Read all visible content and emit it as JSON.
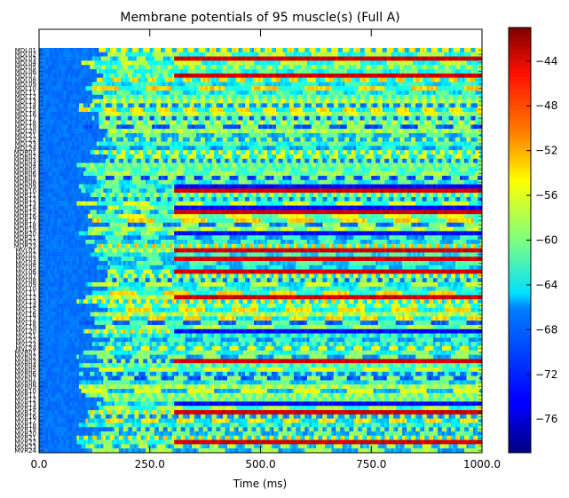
{
  "chart_data": {
    "type": "heatmap",
    "title": "Membrane potentials of 95 muscle(s) (Full A)",
    "xlabel": "Time (ms)",
    "xlim": [
      0,
      1000
    ],
    "x_ticks": [
      "0.0",
      "250.0",
      "500.0",
      "750.0",
      "1000.0"
    ],
    "x_tick_values": [
      0,
      250,
      500,
      750,
      1000
    ],
    "rows": [
      "MDL01",
      "MDL02",
      "MDL03",
      "MDL04",
      "MDL05",
      "MDL06",
      "MDL07",
      "MDL08",
      "MDL09",
      "MDL10",
      "MDL11",
      "MDL12",
      "MDL13",
      "MDL14",
      "MDL15",
      "MDL16",
      "MDL17",
      "MDL18",
      "MDL19",
      "MDL20",
      "MDL21",
      "MDL22",
      "MDL23",
      "MDL24",
      "MDR01",
      "MDR02",
      "MDR03",
      "MDR04",
      "MDR05",
      "MDR06",
      "MDR07",
      "MDR08",
      "MDR09",
      "MDR10",
      "MDR11",
      "MDR12",
      "MDR13",
      "MDR14",
      "MDR15",
      "MDR16",
      "MDR17",
      "MDR18",
      "MDR19",
      "MDR20",
      "MDR21",
      "MDR22",
      "MDR23",
      "MVL01",
      "MVL02",
      "MVL03",
      "MVL04",
      "MVL05",
      "MVL06",
      "MVL07",
      "MVL08",
      "MVL09",
      "MVL10",
      "MVL11",
      "MVL12",
      "MVL13",
      "MVL14",
      "MVL15",
      "MVL16",
      "MVL17",
      "MVL18",
      "MVL19",
      "MVL20",
      "MVL21",
      "MVL22",
      "MVL23",
      "MVL24",
      "MVR01",
      "MVR02",
      "MVR03",
      "MVR04",
      "MVR05",
      "MVR06",
      "MVR07",
      "MVR08",
      "MVR09",
      "MVR10",
      "MVR11",
      "MVR12",
      "MVR13",
      "MVR14",
      "MVR15",
      "MVR16",
      "MVR17",
      "MVR18",
      "MVR19",
      "MVR20",
      "MVR21",
      "MVR22",
      "MVR23",
      "MVR24"
    ],
    "colorbar": {
      "colormap": "jet",
      "vmin": -79,
      "vmax": -41,
      "tick_values": [
        -76,
        -72,
        -68,
        -64,
        -60,
        -56,
        -52,
        -48,
        -44
      ],
      "tick_labels": [
        "−76",
        "−72",
        "−68",
        "−64",
        "−60",
        "−56",
        "−52",
        "−48",
        "−44"
      ]
    },
    "resting_potential": -70,
    "onset_ms_range": [
      80,
      160
    ],
    "grid": false
  }
}
